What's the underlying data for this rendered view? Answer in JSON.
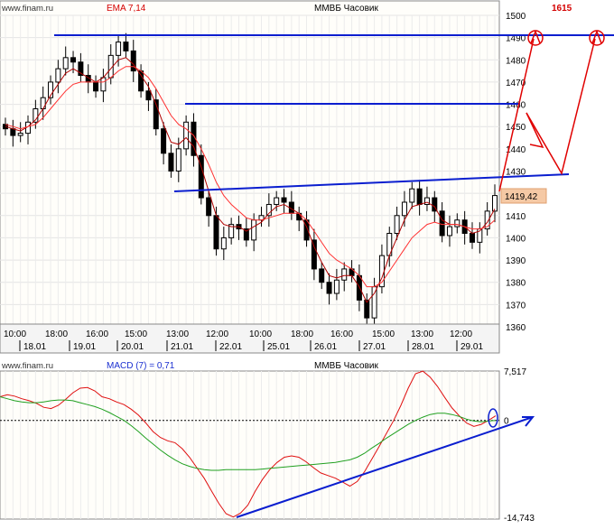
{
  "chart_data": [
    {
      "type": "candlestick",
      "source": "www.finam.ru",
      "indicator_label": "EMA 7,14",
      "title": "ММВБ Часовик",
      "ylim": [
        1360,
        1500
      ],
      "y_ticks": [
        1360,
        1370,
        1380,
        1390,
        1400,
        1410,
        1420,
        1430,
        1440,
        1450,
        1460,
        1470,
        1480,
        1490,
        1500
      ],
      "x_time_labels": [
        "10:00",
        "18:00",
        "16:00",
        "15:00",
        "13:00",
        "12:00",
        "10:00",
        "18:00",
        "16:00",
        "15:00",
        "13:00",
        "12:00"
      ],
      "x_date_labels": [
        "18.01",
        "19.01",
        "20.01",
        "21.01",
        "22.01",
        "25.01",
        "26.01",
        "27.01",
        "28.01",
        "29.01"
      ],
      "last_price_label": "1419,42",
      "target_label": "1615",
      "close_series": [
        1449,
        1446,
        1447,
        1452,
        1458,
        1463,
        1470,
        1476,
        1481,
        1479,
        1473,
        1470,
        1466,
        1472,
        1482,
        1488,
        1484,
        1475,
        1466,
        1462,
        1449,
        1438,
        1430,
        1440,
        1452,
        1437,
        1418,
        1410,
        1395,
        1400,
        1406,
        1404,
        1399,
        1408,
        1410,
        1415,
        1418,
        1416,
        1411,
        1408,
        1399,
        1386,
        1380,
        1375,
        1381,
        1386,
        1383,
        1372,
        1364,
        1378,
        1392,
        1402,
        1410,
        1416,
        1422,
        1415,
        1418,
        1412,
        1401,
        1405,
        1408,
        1402,
        1398,
        1404,
        1412,
        1419
      ],
      "ema_fast": [
        1450,
        1449,
        1448,
        1450,
        1453,
        1458,
        1464,
        1469,
        1474,
        1476,
        1474,
        1472,
        1470,
        1472,
        1476,
        1480,
        1481,
        1478,
        1473,
        1468,
        1460,
        1451,
        1443,
        1442,
        1445,
        1441,
        1432,
        1421,
        1410,
        1406,
        1405,
        1405,
        1403,
        1405,
        1407,
        1411,
        1414,
        1415,
        1413,
        1411,
        1405,
        1396,
        1389,
        1383,
        1382,
        1383,
        1383,
        1378,
        1371,
        1375,
        1382,
        1392,
        1400,
        1408,
        1414,
        1415,
        1416,
        1414,
        1408,
        1406,
        1406,
        1405,
        1402,
        1403,
        1407,
        1413
      ],
      "ema_slow": [
        1451,
        1450,
        1449,
        1450,
        1451,
        1454,
        1458,
        1462,
        1466,
        1469,
        1470,
        1470,
        1470,
        1470,
        1472,
        1475,
        1477,
        1477,
        1475,
        1472,
        1467,
        1461,
        1455,
        1451,
        1449,
        1446,
        1440,
        1433,
        1425,
        1419,
        1415,
        1412,
        1409,
        1408,
        1408,
        1409,
        1410,
        1411,
        1411,
        1411,
        1408,
        1403,
        1398,
        1393,
        1390,
        1388,
        1386,
        1383,
        1378,
        1378,
        1380,
        1385,
        1390,
        1395,
        1400,
        1403,
        1406,
        1407,
        1406,
        1406,
        1406,
        1405,
        1404,
        1404,
        1405,
        1408
      ]
    },
    {
      "type": "line",
      "source": "www.finam.ru",
      "indicator_label": "MACD (7) = 0,71",
      "title": "ММВБ Часовик",
      "ylim": [
        -14.743,
        7.517
      ],
      "y_tick_labels": [
        "7,517",
        "0",
        "-14,743"
      ],
      "macd": [
        3.6,
        3.9,
        3.7,
        3.3,
        3.0,
        2.6,
        2.0,
        1.8,
        2.3,
        3.2,
        4.2,
        4.9,
        5.0,
        4.5,
        3.6,
        3.3,
        2.8,
        2.4,
        1.7,
        0.8,
        -0.4,
        -1.7,
        -2.6,
        -3.1,
        -3.4,
        -4.3,
        -5.6,
        -7.2,
        -8.8,
        -10.7,
        -12.6,
        -14.2,
        -14.7,
        -14.1,
        -12.9,
        -10.8,
        -9.0,
        -7.5,
        -6.4,
        -5.6,
        -5.4,
        -5.6,
        -6.3,
        -7.2,
        -8.0,
        -8.4,
        -8.8,
        -9.4,
        -10.0,
        -9.3,
        -7.8,
        -5.9,
        -4.0,
        -2.0,
        0.0,
        2.3,
        4.9,
        7.1,
        7.5,
        6.6,
        5.2,
        3.5,
        1.9,
        0.7,
        -0.4,
        -0.9,
        -0.6,
        0.0,
        0.7
      ],
      "signal": [
        3.6,
        3.3,
        3.0,
        2.8,
        2.7,
        2.7,
        2.8,
        3.0,
        3.1,
        3.1,
        3.0,
        2.7,
        2.4,
        2.1,
        1.7,
        1.2,
        0.6,
        0.0,
        -0.8,
        -1.7,
        -2.7,
        -3.6,
        -4.5,
        -5.3,
        -6.0,
        -6.6,
        -7.0,
        -7.3,
        -7.5,
        -7.6,
        -7.6,
        -7.5,
        -7.5,
        -7.5,
        -7.5,
        -7.5,
        -7.4,
        -7.3,
        -7.2,
        -7.1,
        -7.0,
        -6.9,
        -6.8,
        -6.7,
        -6.6,
        -6.5,
        -6.4,
        -6.2,
        -6.0,
        -5.6,
        -5.0,
        -4.2,
        -3.5,
        -2.7,
        -2.0,
        -1.3,
        -0.6,
        0.0,
        0.5,
        0.9,
        1.1,
        1.1,
        0.9,
        0.6,
        0.2,
        -0.1,
        -0.2,
        -0.1,
        0.0
      ]
    }
  ]
}
